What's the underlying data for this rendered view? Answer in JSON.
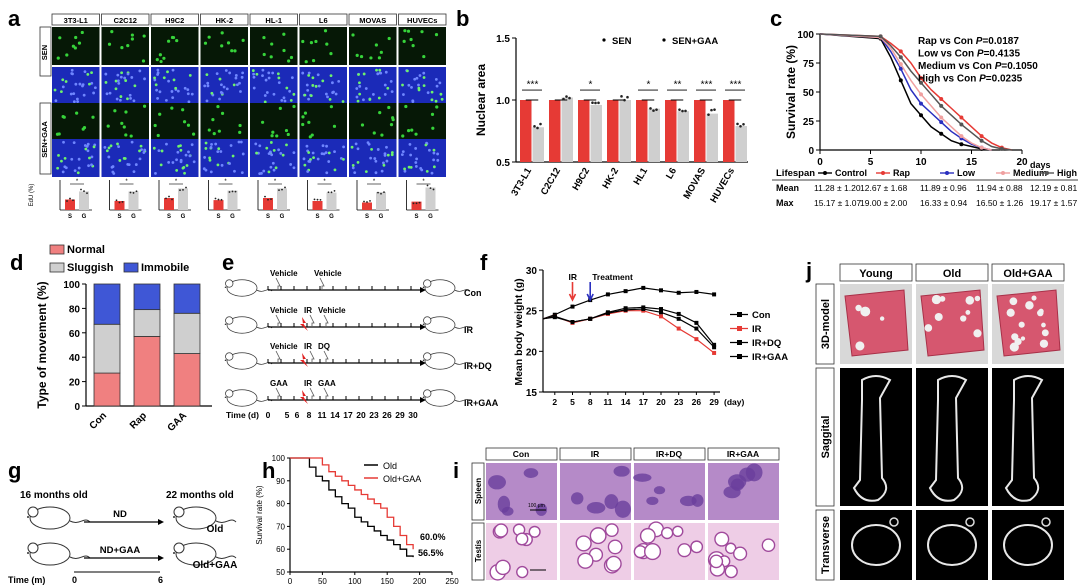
{
  "panel_letters": [
    "a",
    "b",
    "c",
    "d",
    "e",
    "f",
    "g",
    "h",
    "i",
    "j"
  ],
  "colors": {
    "red": "#e63a35",
    "gray": "#cfcfcf",
    "pink": "#f08080",
    "blue_imm": "#3f57d6",
    "nucleus": "#1b2ab8",
    "fluor": "#36d33a",
    "tissue": "#c99bd1"
  },
  "panel_a": {
    "cell_lines": [
      "3T3-L1",
      "C2C12",
      "H9C2",
      "HK-2",
      "HL-1",
      "L6",
      "MOVAS",
      "HUVECs"
    ],
    "row_labels": [
      "SEN",
      "SEN+GAA"
    ],
    "ylabel": "EdU (%)",
    "x_ticks": [
      "S",
      "G"
    ],
    "sig": [
      "*",
      "*",
      "*",
      "*",
      "*",
      "*",
      "*",
      "*"
    ],
    "bars": [
      [
        0.35,
        0.62
      ],
      [
        0.3,
        0.62
      ],
      [
        0.4,
        0.72
      ],
      [
        0.33,
        0.65
      ],
      [
        0.4,
        0.72
      ],
      [
        0.3,
        0.58
      ],
      [
        0.25,
        0.6
      ],
      [
        0.28,
        0.75
      ]
    ]
  },
  "chart_data": [
    {
      "panel": "b",
      "type": "bar",
      "categories": [
        "3T3-L1",
        "C2C12",
        "H9C2",
        "HK-2",
        "HL1",
        "L6",
        "MOVAS",
        "HUVECs"
      ],
      "series": [
        {
          "name": "SEN",
          "values": [
            1.0,
            1.0,
            1.0,
            1.0,
            1.0,
            1.0,
            1.0,
            1.0
          ]
        },
        {
          "name": "SEN+GAA",
          "values": [
            0.78,
            1.02,
            0.96,
            1.0,
            0.93,
            0.91,
            0.89,
            0.79
          ]
        }
      ],
      "ylabel": "Nuclear area",
      "ylim": [
        0.5,
        1.5
      ],
      "yticks": [
        "0.5",
        "1.0",
        "1.5"
      ],
      "significance": [
        "***",
        "",
        "*",
        "",
        "*",
        "**",
        "***",
        "***"
      ],
      "legend": [
        "SEN",
        "SEN+GAA"
      ]
    },
    {
      "panel": "c",
      "type": "line",
      "ylabel": "Survival rate (%)",
      "xlabel": "days",
      "xlim": [
        0,
        20
      ],
      "ylim": [
        0,
        100
      ],
      "xticks": [
        "0",
        "5",
        "10",
        "15",
        "20"
      ],
      "yticks": [
        "0",
        "25",
        "50",
        "75",
        "100"
      ],
      "stats": [
        "Rap vs Con",
        "Low vs Con",
        "Medium vs Con",
        "High vs Con"
      ],
      "pvalues": [
        "=0.0187",
        "=0.4135",
        "=0.1050",
        "=0.0235"
      ],
      "pvalue_label": "P",
      "series": [
        {
          "name": "Control",
          "color": "#000000",
          "x": [
            0,
            6,
            7,
            8,
            9,
            10,
            11,
            12,
            13,
            14,
            15,
            16,
            17
          ],
          "y": [
            100,
            96,
            80,
            60,
            40,
            30,
            20,
            14,
            8,
            5,
            3,
            1,
            0
          ]
        },
        {
          "name": "Rap",
          "color": "#e63a35",
          "x": [
            0,
            6,
            7,
            8,
            9,
            10,
            11,
            12,
            13,
            14,
            15,
            16,
            17,
            18,
            19
          ],
          "y": [
            100,
            98,
            92,
            85,
            75,
            62,
            52,
            44,
            36,
            28,
            20,
            12,
            6,
            2,
            0
          ]
        },
        {
          "name": "Low",
          "color": "#2a2fbf",
          "x": [
            0,
            6,
            7,
            8,
            9,
            10,
            11,
            12,
            13,
            14,
            15,
            16,
            17
          ],
          "y": [
            100,
            97,
            85,
            70,
            52,
            40,
            32,
            24,
            16,
            10,
            5,
            2,
            0
          ]
        },
        {
          "name": "Medium",
          "color": "#f0a0a0",
          "x": [
            0,
            6,
            7,
            8,
            9,
            10,
            11,
            12,
            13,
            14,
            15,
            16,
            17
          ],
          "y": [
            100,
            97,
            88,
            74,
            60,
            48,
            38,
            28,
            20,
            12,
            6,
            2,
            0
          ]
        },
        {
          "name": "High",
          "color": "#555555",
          "x": [
            0,
            6,
            7,
            8,
            9,
            10,
            11,
            12,
            13,
            14,
            15,
            16,
            17,
            18,
            19
          ],
          "y": [
            100,
            98,
            90,
            80,
            68,
            58,
            48,
            38,
            30,
            22,
            15,
            8,
            3,
            1,
            0
          ]
        }
      ],
      "table": {
        "header": "Lifespan",
        "row_labels": [
          "Mean",
          "Max"
        ],
        "columns": [
          {
            "name": "Control",
            "mean": "11.28 ± 1.20",
            "max": "15.17 ± 1.07"
          },
          {
            "name": "Rap",
            "mean": "12.67 ± 1.68",
            "max": "19.00 ± 2.00"
          },
          {
            "name": "Low",
            "mean": "11.89 ± 0.96",
            "max": "16.33 ± 0.94"
          },
          {
            "name": "Medium",
            "mean": "11.94 ± 0.88",
            "max": "16.50 ± 1.26"
          },
          {
            "name": "High",
            "mean": "12.19 ± 0.81",
            "max": "19.17 ± 1.57"
          }
        ]
      }
    },
    {
      "panel": "d",
      "type": "bar",
      "stacked": true,
      "categories": [
        "Con",
        "Rap",
        "GAA"
      ],
      "series": [
        {
          "name": "Normal",
          "values": [
            27,
            57,
            43
          ]
        },
        {
          "name": "Sluggish",
          "values": [
            40,
            22,
            33
          ]
        },
        {
          "name": "Immobile",
          "values": [
            33,
            21,
            24
          ]
        }
      ],
      "ylabel": "Type of movement (%)",
      "ylim": [
        0,
        100
      ],
      "yticks": [
        "0",
        "20",
        "40",
        "60",
        "80",
        "100"
      ]
    },
    {
      "panel": "f",
      "type": "line",
      "ylabel": "Mean body weight (g)",
      "xlabel": "(day)",
      "xticks": [
        "2",
        "5",
        "8",
        "11",
        "14",
        "17",
        "20",
        "23",
        "26",
        "29"
      ],
      "yticks": [
        "15",
        "20",
        "25",
        "30"
      ],
      "ylim": [
        15,
        30
      ],
      "arrows": [
        "IR",
        "Treatment"
      ],
      "series": [
        {
          "name": "Con",
          "color": "#000000",
          "x": [
            0,
            2,
            5,
            8,
            11,
            14,
            17,
            20,
            23,
            26,
            29
          ],
          "y": [
            24,
            24.5,
            25.5,
            26.3,
            27,
            27.4,
            27.8,
            27.5,
            27.2,
            27.3,
            27.0
          ]
        },
        {
          "name": "IR",
          "color": "#e63a35",
          "x": [
            0,
            2,
            5,
            8,
            11,
            14,
            17,
            20,
            23,
            26,
            29
          ],
          "y": [
            24,
            24.3,
            23.5,
            24,
            24.6,
            25,
            25,
            24.3,
            22.8,
            21.5,
            19.8
          ]
        },
        {
          "name": "IR+DQ",
          "color": "#000000",
          "x": [
            0,
            2,
            5,
            8,
            11,
            14,
            17,
            20,
            23,
            26,
            29
          ],
          "y": [
            24,
            24.3,
            23.6,
            24,
            24.7,
            25.1,
            25.2,
            24.8,
            24,
            22.8,
            20.5
          ]
        },
        {
          "name": "IR+GAA",
          "color": "#000000",
          "x": [
            0,
            2,
            5,
            8,
            11,
            14,
            17,
            20,
            23,
            26,
            29
          ],
          "y": [
            24,
            24.2,
            23.6,
            24,
            24.8,
            25.3,
            25.4,
            25.2,
            24.6,
            23.5,
            20.8
          ]
        }
      ]
    },
    {
      "panel": "h",
      "type": "line",
      "ylabel": "Survival rate (%)",
      "xticks": [
        "0",
        "50",
        "100",
        "150",
        "200",
        "250"
      ],
      "yticks": [
        "50",
        "60",
        "70",
        "80",
        "90",
        "100"
      ],
      "xlim": [
        0,
        250
      ],
      "ylim": [
        50,
        100
      ],
      "end_labels": [
        "60.0%",
        "56.5%"
      ],
      "series": [
        {
          "name": "Old",
          "color": "#000000",
          "x": [
            0,
            20,
            30,
            40,
            50,
            60,
            70,
            80,
            90,
            100,
            110,
            120,
            130,
            140,
            150,
            160,
            170,
            180,
            190
          ],
          "y": [
            100,
            100,
            96,
            92,
            90,
            86,
            83,
            80,
            78,
            74,
            72,
            70,
            68,
            66,
            64,
            62,
            60,
            57,
            56.5
          ]
        },
        {
          "name": "Old+GAA",
          "color": "#e63a35",
          "x": [
            0,
            40,
            50,
            60,
            70,
            80,
            90,
            100,
            110,
            120,
            130,
            140,
            150,
            160,
            170,
            180,
            190
          ],
          "y": [
            100,
            100,
            97,
            94,
            92,
            90,
            88,
            86,
            84,
            82,
            80,
            78,
            74,
            70,
            66,
            62,
            60
          ]
        }
      ]
    }
  ],
  "panel_e": {
    "groups": [
      {
        "label": "Con",
        "top": [
          "Vehicle",
          "Vehicle"
        ]
      },
      {
        "label": "IR",
        "top": [
          "Vehicle",
          "IR",
          "Vehicle"
        ]
      },
      {
        "label": "IR+DQ",
        "top": [
          "Vehicle",
          "IR",
          "DQ"
        ]
      },
      {
        "label": "IR+GAA",
        "top": [
          "GAA",
          "IR",
          "GAA"
        ]
      }
    ],
    "time_label": "Time (d)",
    "ticks": [
      "0",
      "5",
      "6",
      "8",
      "11",
      "14",
      "17",
      "20",
      "23",
      "26",
      "29",
      "30"
    ]
  },
  "panel_g": {
    "start": "16 months old",
    "end": "22 months old",
    "arrows": [
      "ND",
      "ND+GAA"
    ],
    "groups": [
      "Old",
      "Old+GAA"
    ],
    "time_label": "Time (m)",
    "t0": "0",
    "t1": "6"
  },
  "panel_i": {
    "columns": [
      "Con",
      "IR",
      "IR+DQ",
      "IR+GAA"
    ],
    "rows": [
      "Spleen",
      "Testis"
    ],
    "scale": "100 μm"
  },
  "panel_j": {
    "columns": [
      "Young",
      "Old",
      "Old+GAA"
    ],
    "rows": [
      "3D-model",
      "Saggital",
      "Transverse"
    ]
  }
}
